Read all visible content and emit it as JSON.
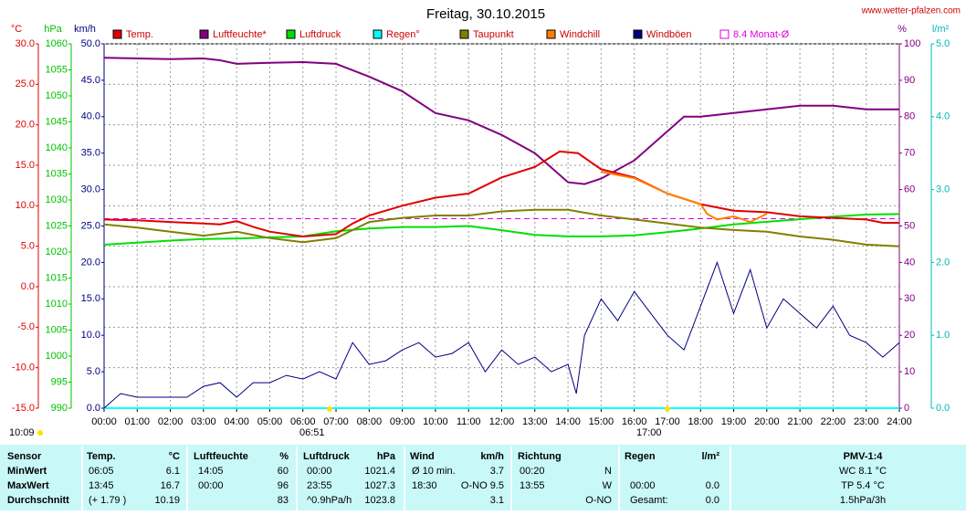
{
  "chart_data": {
    "type": "line",
    "title": "Freitag, 30.10.2015",
    "source": "www.wetter-pfalzen.com",
    "ylabel": "°C",
    "y2label": "%",
    "y3label": "hPa",
    "y4label": "km/h",
    "y5label": "l/m²",
    "grid": true,
    "xlim": [
      0,
      24
    ],
    "xticks": [
      {
        "value": 0,
        "label": "00:00"
      },
      {
        "value": 1,
        "label": "01:00"
      },
      {
        "value": 2,
        "label": "02:00"
      },
      {
        "value": 3,
        "label": "03:00"
      },
      {
        "value": 4,
        "label": "04:00"
      },
      {
        "value": 5,
        "label": "05:00"
      },
      {
        "value": 6,
        "label": "06:00"
      },
      {
        "value": 7,
        "label": "07:00"
      },
      {
        "value": 8,
        "label": "08:00"
      },
      {
        "value": 9,
        "label": "09:00"
      },
      {
        "value": 10,
        "label": "10:00"
      },
      {
        "value": 11,
        "label": "11:00"
      },
      {
        "value": 12,
        "label": "12:00"
      },
      {
        "value": 13,
        "label": "13:00"
      },
      {
        "value": 14,
        "label": "14:00"
      },
      {
        "value": 15,
        "label": "15:00"
      },
      {
        "value": 16,
        "label": "16:00"
      },
      {
        "value": 17,
        "label": "17:00"
      },
      {
        "value": 18,
        "label": "18:00"
      },
      {
        "value": 19,
        "label": "19:00"
      },
      {
        "value": 20,
        "label": "20:00"
      },
      {
        "value": 21,
        "label": "21:00"
      },
      {
        "value": 22,
        "label": "22:00"
      },
      {
        "value": 23,
        "label": "23:00"
      },
      {
        "value": 24,
        "label": "24:00"
      }
    ],
    "ylim": [
      -15,
      30
    ],
    "yticks": [
      {
        "value": -15,
        "label": "-15.0"
      },
      {
        "value": -10,
        "label": "-10.0"
      },
      {
        "value": -5,
        "label": "-5.0"
      },
      {
        "value": 0,
        "label": "0.0"
      },
      {
        "value": 5,
        "label": "5.0"
      },
      {
        "value": 10,
        "label": "10.0"
      },
      {
        "value": 15,
        "label": "15.0"
      },
      {
        "value": 20,
        "label": "20.0"
      },
      {
        "value": 25,
        "label": "25.0"
      },
      {
        "value": 30,
        "label": "30.0"
      }
    ],
    "y2lim": [
      0,
      100
    ],
    "y2ticks": [
      0,
      10,
      20,
      30,
      40,
      50,
      60,
      70,
      80,
      90,
      100
    ],
    "y3lim": [
      990,
      1060
    ],
    "y3ticks": [
      990,
      995,
      1000,
      1005,
      1010,
      1015,
      1020,
      1025,
      1030,
      1035,
      1040,
      1045,
      1050,
      1055,
      1060
    ],
    "y4lim": [
      0,
      50
    ],
    "y4ticks": [
      {
        "value": 0,
        "label": "0.0"
      },
      {
        "value": 5,
        "label": "5.0"
      },
      {
        "value": 10,
        "label": "10.0"
      },
      {
        "value": 15,
        "label": "15.0"
      },
      {
        "value": 20,
        "label": "20.0"
      },
      {
        "value": 25,
        "label": "25.0"
      },
      {
        "value": 30,
        "label": "30.0"
      },
      {
        "value": 35,
        "label": "35.0"
      },
      {
        "value": 40,
        "label": "40.0"
      },
      {
        "value": 45,
        "label": "45.0"
      },
      {
        "value": 50,
        "label": "50.0"
      }
    ],
    "y5lim": [
      0,
      5
    ],
    "y5ticks": [
      {
        "value": 0,
        "label": "0.0"
      },
      {
        "value": 1,
        "label": "1.0"
      },
      {
        "value": 2,
        "label": "2.0"
      },
      {
        "value": 3,
        "label": "3.0"
      },
      {
        "value": 4,
        "label": "4.0"
      },
      {
        "value": 5,
        "label": "5.0"
      }
    ],
    "series": [
      {
        "name": "Temp.",
        "color": "#e00000",
        "axis": "y",
        "x": [
          0,
          1,
          2,
          3,
          3.5,
          4,
          4.5,
          5,
          6,
          7,
          7.5,
          8,
          9,
          10,
          11,
          12,
          13,
          13.75,
          14.3,
          15,
          16,
          17,
          18,
          19,
          20,
          21,
          22,
          23,
          23.5,
          24
        ],
        "values": [
          8.3,
          8.2,
          8.0,
          7.8,
          7.7,
          8.1,
          7.4,
          6.8,
          6.2,
          6.5,
          7.8,
          8.8,
          10.0,
          11.0,
          11.5,
          13.5,
          14.8,
          16.7,
          16.5,
          14.5,
          13.5,
          11.5,
          10.2,
          9.4,
          9.2,
          8.7,
          8.5,
          8.3,
          7.9,
          7.9
        ]
      },
      {
        "name": "Luftfeuchte*",
        "color": "#800080",
        "axis": "y2",
        "x": [
          0,
          1,
          2,
          3,
          3.5,
          4,
          5,
          6,
          7,
          8,
          9,
          10,
          11,
          12,
          13,
          14,
          14.5,
          15,
          16,
          17,
          17.5,
          18,
          19,
          20,
          21,
          22,
          23,
          24
        ],
        "values": [
          96.2,
          96,
          95.8,
          96,
          95.5,
          94.5,
          94.8,
          95,
          94.5,
          91,
          87,
          81,
          79,
          75,
          70,
          62,
          61.5,
          63,
          68,
          76,
          80,
          80,
          81,
          82,
          83,
          83,
          82,
          82
        ]
      },
      {
        "name": "Luftdruck",
        "color": "#00e000",
        "axis": "y3",
        "x": [
          0,
          1,
          2,
          3,
          4,
          5,
          6,
          7,
          8,
          9,
          10,
          11,
          12,
          13,
          14,
          15,
          16,
          17,
          18,
          19,
          20,
          21,
          22,
          23,
          24
        ],
        "values": [
          1021.4,
          1021.8,
          1022.2,
          1022.5,
          1022.6,
          1022.8,
          1023.0,
          1024.0,
          1024.5,
          1024.8,
          1024.8,
          1025.0,
          1024.2,
          1023.3,
          1023.0,
          1023.0,
          1023.2,
          1023.8,
          1024.5,
          1025.3,
          1025.8,
          1026.3,
          1026.8,
          1027.2,
          1027.3
        ]
      },
      {
        "name": "Regen°",
        "color": "#00ffff",
        "axis": "y5",
        "x": [
          0,
          24
        ],
        "values": [
          0,
          0
        ]
      },
      {
        "name": "Taupunkt",
        "color": "#808000",
        "axis": "y",
        "x": [
          0,
          1,
          2,
          3,
          4,
          5,
          6,
          7,
          8,
          9,
          10,
          11,
          12,
          13,
          14,
          15,
          16,
          17,
          18,
          19,
          20,
          21,
          22,
          23,
          24
        ],
        "values": [
          7.7,
          7.3,
          6.8,
          6.3,
          6.8,
          6.0,
          5.5,
          6.0,
          8.0,
          8.5,
          8.8,
          8.8,
          9.3,
          9.5,
          9.5,
          8.8,
          8.3,
          7.8,
          7.3,
          7.0,
          6.8,
          6.2,
          5.8,
          5.2,
          5.0
        ]
      },
      {
        "name": "Windchill",
        "color": "#ff8000",
        "axis": "y",
        "x": [
          15,
          15.5,
          16,
          17,
          18,
          18.2,
          18.5,
          19,
          19.5,
          20
        ],
        "values": [
          14.2,
          13.8,
          13.4,
          11.5,
          10.2,
          9.0,
          8.3,
          8.7,
          8.0,
          9.0
        ]
      },
      {
        "name": "Windböen",
        "color": "#000080",
        "axis": "y4",
        "x": [
          0,
          0.5,
          1,
          1.5,
          2,
          2.5,
          3,
          3.5,
          4,
          4.5,
          5,
          5.5,
          6,
          6.5,
          7,
          7.5,
          8,
          8.5,
          9,
          9.5,
          10,
          10.5,
          11,
          11.5,
          12,
          12.5,
          13,
          13.5,
          14,
          14.25,
          14.5,
          15,
          15.5,
          16,
          16.5,
          17,
          17.5,
          18,
          18.5,
          19,
          19.5,
          20,
          20.5,
          21,
          21.5,
          22,
          22.5,
          23,
          23.5,
          24
        ],
        "values": [
          0,
          2,
          1.5,
          1.5,
          1.5,
          1.5,
          3,
          3.5,
          1.5,
          3.5,
          3.5,
          4.5,
          4,
          5,
          4,
          9,
          6,
          6.5,
          8,
          9,
          7,
          7.5,
          9,
          5,
          8,
          6,
          7,
          5,
          6,
          2,
          10,
          15,
          12,
          16,
          13,
          10,
          8,
          14,
          20,
          13,
          19,
          11,
          15,
          13,
          11,
          14,
          10,
          9,
          7,
          9
        ]
      },
      {
        "name": "8.4 Monat-Ø",
        "color": "#e000e0",
        "axis": "y",
        "value": 8.4,
        "style": "dashed"
      }
    ],
    "annotations": [
      "10:09",
      "06:51",
      "17:00"
    ]
  },
  "table": {
    "header": {
      "0": "Sensor",
      "1": "Temp.",
      "2": "°C",
      "3": "Luftfeuchte",
      "4": "%",
      "5": "Luftdruck",
      "6": "hPa",
      "7": "Wind",
      "8": "km/h",
      "9": "Richtung",
      "11": "Regen",
      "12": "l/m²",
      "13": "PMV-1:4"
    },
    "rows": [
      {
        "0": "MinWert",
        "1": "06:05",
        "2": "6.1",
        "3": "14:05",
        "4": "60",
        "5": "00:00",
        "6": "1021.4",
        "7": "Ø 10 min.",
        "8": "3.7",
        "9": "00:20",
        "10": "N",
        "13": "WC 8.1 °C"
      },
      {
        "0": "MaxWert",
        "1": "13:45",
        "2": "16.7",
        "3": "00:00",
        "4": "96",
        "5": "23:55",
        "6": "1027.3",
        "7": "18:30",
        "8": "O-NO 9.5",
        "9": "13:55",
        "10": "W",
        "11": "00:00",
        "12": "0.0",
        "13": "TP 5.4 °C"
      },
      {
        "0": "Durchschnitt",
        "1": "(+ 1.79 )",
        "2": "10.19",
        "4": "83",
        "5": "^0.9hPa/h",
        "6": "1023.8",
        "8": "3.1",
        "10": "O-NO",
        "11": "Gesamt:",
        "12": "0.0",
        "13": "1.5hPa/3h"
      }
    ]
  }
}
